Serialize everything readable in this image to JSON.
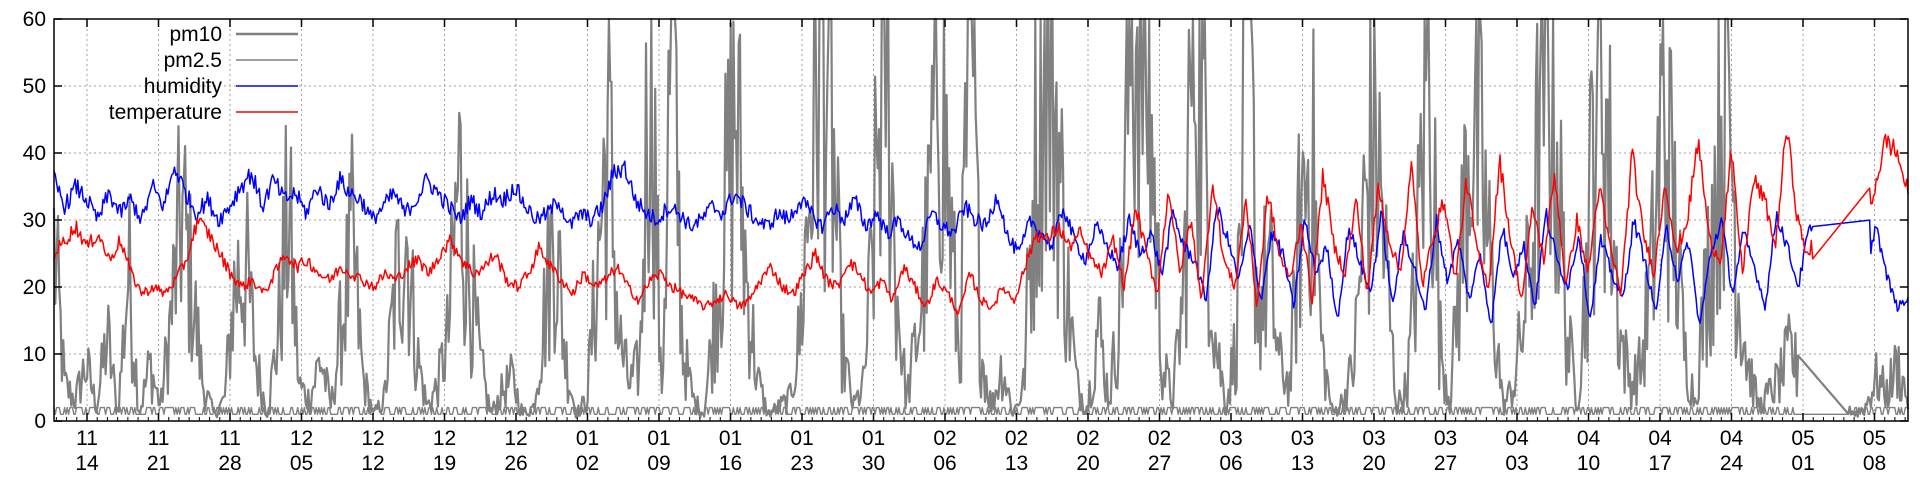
{
  "chart_data": {
    "type": "line",
    "title": "",
    "xlabel": "",
    "ylabel": "",
    "ylim": [
      0,
      60
    ],
    "yticks": [
      "0",
      "10",
      "20",
      "30",
      "40",
      "50",
      "60"
    ],
    "xticks": [
      {
        "month": "11",
        "day": "14"
      },
      {
        "month": "11",
        "day": "21"
      },
      {
        "month": "11",
        "day": "28"
      },
      {
        "month": "12",
        "day": "05"
      },
      {
        "month": "12",
        "day": "12"
      },
      {
        "month": "12",
        "day": "19"
      },
      {
        "month": "12",
        "day": "26"
      },
      {
        "month": "01",
        "day": "02"
      },
      {
        "month": "01",
        "day": "09"
      },
      {
        "month": "01",
        "day": "16"
      },
      {
        "month": "01",
        "day": "23"
      },
      {
        "month": "01",
        "day": "30"
      },
      {
        "month": "02",
        "day": "06"
      },
      {
        "month": "02",
        "day": "13"
      },
      {
        "month": "02",
        "day": "20"
      },
      {
        "month": "02",
        "day": "27"
      },
      {
        "month": "03",
        "day": "06"
      },
      {
        "month": "03",
        "day": "13"
      },
      {
        "month": "03",
        "day": "20"
      },
      {
        "month": "03",
        "day": "27"
      },
      {
        "month": "04",
        "day": "03"
      },
      {
        "month": "04",
        "day": "10"
      },
      {
        "month": "04",
        "day": "17"
      },
      {
        "month": "04",
        "day": "24"
      },
      {
        "month": "05",
        "day": "01"
      },
      {
        "month": "05",
        "day": "08"
      }
    ],
    "grid": true,
    "legend_position": "top-left",
    "series": [
      {
        "name": "pm10",
        "color": "#808080",
        "y": [
          25,
          5,
          3,
          8,
          2,
          12,
          1,
          22,
          1,
          8,
          2,
          15,
          30,
          18,
          5,
          1,
          3,
          20,
          22,
          8,
          1,
          12,
          30,
          5,
          3,
          9,
          2,
          14,
          25,
          6,
          1,
          3,
          18,
          28,
          10,
          2,
          5,
          12,
          35,
          20,
          8,
          1,
          4,
          6,
          1,
          2,
          15,
          28,
          9,
          1,
          3,
          22,
          42,
          12,
          5,
          8,
          60,
          2,
          60,
          10,
          3,
          1,
          15,
          30,
          45,
          20,
          6,
          1,
          2,
          3,
          12,
          35,
          60,
          40,
          10,
          2,
          5,
          28,
          60,
          20,
          3,
          12,
          25,
          55,
          30,
          8,
          60,
          10,
          2,
          8,
          1,
          5,
          35,
          60,
          45,
          20,
          5,
          2,
          14,
          3,
          15,
          55,
          60,
          40,
          8,
          3,
          18,
          60,
          40,
          12,
          2,
          12,
          60,
          15,
          22,
          8,
          5,
          30,
          40,
          10,
          1,
          3,
          8,
          30,
          42,
          22,
          2,
          5,
          25,
          60,
          12,
          3,
          22,
          45,
          35,
          18,
          2,
          5,
          15,
          30,
          60,
          40,
          12,
          3,
          25,
          60,
          35,
          12,
          5,
          8,
          22,
          45,
          30,
          10,
          3,
          18,
          35,
          55,
          20,
          8,
          2,
          4,
          6,
          10,
          5,
          2,
          3,
          8,
          3,
          1,
          2,
          6,
          4,
          8,
          3
        ],
        "gaps": [
          [
            0.94,
            0.968
          ]
        ]
      },
      {
        "name": "pm2.5",
        "color": "#808080",
        "y": [
          1,
          2,
          1,
          2,
          1,
          1,
          2,
          1,
          1,
          2,
          1,
          1,
          2,
          1,
          2,
          1,
          1,
          2,
          1,
          1,
          2,
          1,
          1,
          2,
          1,
          1,
          2,
          1,
          1,
          2,
          1,
          1,
          2,
          1,
          1,
          2,
          1,
          1,
          2,
          1,
          1,
          2,
          1,
          1,
          2,
          1,
          1,
          2,
          1,
          1,
          2,
          1,
          1,
          2,
          1,
          1,
          2,
          1,
          1,
          2,
          1,
          1,
          2,
          1,
          1,
          2,
          1,
          1,
          2,
          1,
          1,
          2,
          1,
          1,
          2,
          1,
          1,
          2,
          1,
          1,
          2,
          1,
          1,
          2,
          1,
          1,
          2,
          1,
          1,
          2,
          1,
          1,
          2,
          1,
          1,
          2,
          1,
          1,
          2,
          1,
          1,
          2,
          1,
          1,
          2,
          1,
          1,
          2,
          1,
          1,
          2,
          1,
          1,
          2,
          1,
          1,
          2,
          1,
          1,
          2,
          1,
          1,
          2,
          1,
          1,
          2,
          1,
          1,
          2,
          1,
          1,
          2,
          1,
          1,
          2,
          1,
          1,
          2,
          1,
          1,
          2,
          1,
          1,
          2,
          1,
          1,
          2,
          1,
          1,
          2,
          1,
          1,
          2,
          1,
          1,
          2,
          1,
          1,
          2,
          1,
          1,
          2,
          1,
          1,
          2,
          1,
          1,
          2,
          1,
          1,
          2,
          1,
          1,
          2,
          1
        ],
        "gaps": [
          [
            0.94,
            0.968
          ]
        ]
      },
      {
        "name": "humidity",
        "color": "#0000ff",
        "y": [
          36,
          32,
          35,
          33,
          30,
          34,
          31,
          33,
          30,
          35,
          32,
          38,
          34,
          31,
          33,
          30,
          32,
          35,
          37,
          32,
          36,
          33,
          34,
          31,
          35,
          32,
          36,
          34,
          33,
          30,
          32,
          34,
          31,
          33,
          36,
          34,
          32,
          30,
          33,
          31,
          34,
          33,
          35,
          32,
          30,
          31,
          33,
          29,
          31,
          30,
          32,
          37,
          38,
          33,
          31,
          30,
          32,
          31,
          29,
          30,
          32,
          31,
          34,
          32,
          30,
          29,
          31,
          30,
          33,
          31,
          29,
          32,
          30,
          33,
          29,
          31,
          28,
          30,
          27,
          26,
          31,
          29,
          28,
          32,
          30,
          29,
          34,
          27,
          25,
          30,
          28,
          26,
          32,
          27,
          24,
          29,
          26,
          23,
          30,
          25,
          28,
          22,
          31,
          26,
          24,
          18,
          32,
          27,
          21,
          29,
          18,
          28,
          25,
          17,
          30,
          22,
          26,
          15,
          29,
          24,
          19,
          31,
          17,
          28,
          23,
          16,
          30,
          21,
          27,
          18,
          25,
          14,
          29,
          22,
          26,
          17,
          31,
          24,
          20,
          28,
          15,
          27,
          22,
          18,
          30,
          24,
          16,
          29,
          21,
          27,
          14,
          25,
          30,
          19,
          28,
          23,
          17,
          31,
          26,
          20,
          29,
          24,
          18,
          32,
          27,
          15,
          30,
          22,
          17,
          18
        ],
        "gaps": [
          [
            0.948,
            0.98
          ]
        ]
      },
      {
        "name": "temperature",
        "color": "#ff0000",
        "y": [
          25,
          27,
          29,
          26,
          28,
          24,
          27,
          22,
          19,
          20,
          19,
          21,
          24,
          30,
          28,
          25,
          22,
          20,
          21,
          19,
          22,
          25,
          23,
          24,
          22,
          21,
          23,
          22,
          21,
          20,
          22,
          21,
          23,
          24,
          22,
          25,
          27,
          24,
          22,
          23,
          25,
          21,
          20,
          22,
          26,
          23,
          21,
          19,
          22,
          20,
          21,
          23,
          20,
          18,
          21,
          22,
          20,
          19,
          18,
          17,
          18,
          19,
          17,
          18,
          21,
          23,
          20,
          19,
          22,
          25,
          21,
          20,
          24,
          22,
          19,
          21,
          18,
          23,
          20,
          17,
          21,
          19,
          16,
          22,
          18,
          17,
          20,
          18,
          23,
          28,
          27,
          29,
          26,
          28,
          24,
          22,
          27,
          20,
          32,
          25,
          19,
          35,
          22,
          30,
          18,
          36,
          24,
          20,
          33,
          17,
          34,
          25,
          21,
          30,
          18,
          37,
          26,
          22,
          33,
          19,
          35,
          27,
          22,
          38,
          20,
          28,
          33,
          21,
          36,
          25,
          20,
          39,
          27,
          18,
          32,
          24,
          37,
          20,
          30,
          22,
          35,
          26,
          19,
          40,
          28,
          22,
          36,
          25,
          30,
          42,
          27,
          24,
          40,
          22,
          36,
          33,
          26,
          44,
          30,
          24,
          34,
          42,
          44,
          32,
          26,
          35,
          42,
          40,
          34
        ],
        "gaps": [
          [
            0.948,
            0.98
          ]
        ]
      }
    ]
  }
}
